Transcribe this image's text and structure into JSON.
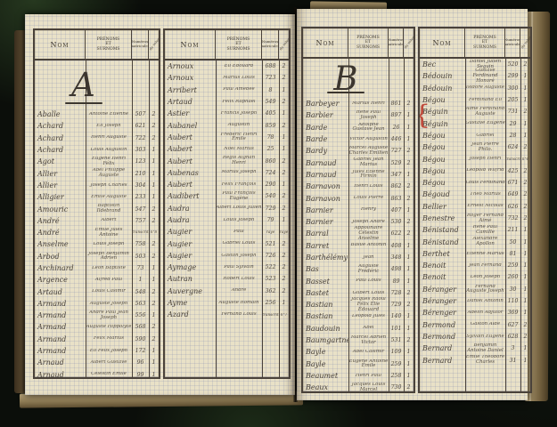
{
  "meta": {
    "document_type": "registre alphabétique manuscrit",
    "ink_color": "#474039",
    "red_accent": "#bf4b3c",
    "page_color": "#e9e1c7",
    "background_color": "#0b0e0a"
  },
  "header": {
    "nom": "Nom",
    "prenoms": "Prénoms\net\nSurnoms",
    "numeros": "Numéros\nmatricules",
    "volume": "N° du volume"
  },
  "pages": [
    {
      "side": "left",
      "letter": "A",
      "groups": [
        {
          "has_letter": true,
          "rows": [
            {
              "nom": "Aballe",
              "prenoms": "Antoine Étienne",
              "num": "507",
              "vol": "2"
            },
            {
              "nom": "Achard",
              "prenoms": "Éli Joseph",
              "num": "621",
              "vol": "2"
            },
            {
              "nom": "Achard",
              "prenoms": "Henri Auguste",
              "num": "722",
              "vol": "2"
            },
            {
              "nom": "Achard",
              "prenoms": "Louis Augustin",
              "num": "303",
              "vol": "1"
            },
            {
              "nom": "Agot",
              "prenoms": "Eugène Henri Félix",
              "num": "123",
              "vol": "1"
            },
            {
              "nom": "Allier",
              "prenoms": "Abel Philippe Auguste",
              "num": "210",
              "vol": "1"
            },
            {
              "nom": "Allier",
              "prenoms": "Joseph Charles",
              "num": "304",
              "vol": "1"
            },
            {
              "nom": "Alligier",
              "prenoms": "Émile Auguste",
              "num": "233",
              "vol": "1"
            },
            {
              "nom": "Amouric",
              "prenoms": "Baptistin Ildebrand",
              "num": "547",
              "vol": "2"
            },
            {
              "nom": "André",
              "prenoms": "Albert",
              "num": "757",
              "vol": "2"
            },
            {
              "nom": "André",
              "prenoms": "Émile Jules Antoine",
              "num": "transcrit",
              "vol": "n°8",
              "note": true
            },
            {
              "nom": "Anselme",
              "prenoms": "Louis Joseph",
              "num": "758",
              "vol": "2"
            },
            {
              "nom": "Arbod",
              "prenoms": "Joseph Benjamin Adrien",
              "num": "503",
              "vol": "2"
            },
            {
              "nom": "Archinard",
              "prenoms": "Léon Baptiste",
              "num": "73",
              "vol": "1"
            },
            {
              "nom": "Argence",
              "prenoms": "Alfred Paul",
              "num": "1",
              "vol": "1"
            },
            {
              "nom": "Artaud",
              "prenoms": "Louis Casimir",
              "num": "548",
              "vol": "2"
            },
            {
              "nom": "Armand",
              "prenoms": "Auguste Joseph",
              "num": "563",
              "vol": "2"
            },
            {
              "nom": "Armand",
              "prenoms": "André Paul Jean Joseph",
              "num": "556",
              "vol": "1"
            },
            {
              "nom": "Armand",
              "prenoms": "Auguste Hippolyte",
              "num": "568",
              "vol": "2"
            },
            {
              "nom": "Armand",
              "prenoms": "Félix Marius",
              "num": "590",
              "vol": "2"
            },
            {
              "nom": "Armand",
              "prenoms": "Éli Félix Joseph",
              "num": "172",
              "vol": "1"
            },
            {
              "nom": "Arnaud",
              "prenoms": "Albert Gustave",
              "num": "96",
              "vol": "1"
            },
            {
              "nom": "Arnaud",
              "prenoms": "Célestin Émile",
              "num": "99",
              "vol": "1"
            }
          ]
        },
        {
          "has_letter": false,
          "rows": [
            {
              "nom": "Arnoux",
              "prenoms": "Éli Édouard",
              "num": "688",
              "vol": "2"
            },
            {
              "nom": "Arnoux",
              "prenoms": "Marius Louis",
              "num": "723",
              "vol": "2"
            },
            {
              "nom": "Arribert",
              "prenoms": "Paul Amédée",
              "num": "8",
              "vol": "1"
            },
            {
              "nom": "Artaud",
              "prenoms": "Félix Raphaël",
              "num": "549",
              "vol": "2"
            },
            {
              "nom": "Astier",
              "prenoms": "Francis Joseph",
              "num": "405",
              "vol": "1"
            },
            {
              "nom": "Aubanel",
              "prenoms": "Augustin",
              "num": "859",
              "vol": "2"
            },
            {
              "nom": "Aubert",
              "prenoms": "Frédéric Henri Émile",
              "num": "78",
              "vol": "1"
            },
            {
              "nom": "Aubert",
              "prenoms": "Noël Marius",
              "num": "25",
              "vol": "1"
            },
            {
              "nom": "Aubert",
              "prenoms": "Régis Aignan Henri",
              "num": "860",
              "vol": "2"
            },
            {
              "nom": "Aubenas",
              "prenoms": "Marius Joseph",
              "num": "724",
              "vol": "2"
            },
            {
              "nom": "Aubert",
              "prenoms": "Félix François",
              "num": "290",
              "vol": "1"
            },
            {
              "nom": "Audibert",
              "prenoms": "Paul François Eugène",
              "num": "540",
              "vol": "2"
            },
            {
              "nom": "Audra",
              "prenoms": "Albert Louis Julien",
              "num": "729",
              "vol": "2"
            },
            {
              "nom": "Audra",
              "prenoms": "Louis Joseph",
              "num": "79",
              "vol": "1"
            },
            {
              "nom": "Augier",
              "prenoms": "Paul",
              "num": "rayé",
              "vol": "rayé",
              "note": true
            },
            {
              "nom": "Augier",
              "prenoms": "Gabriel Louis",
              "num": "521",
              "vol": "2"
            },
            {
              "nom": "Augier",
              "prenoms": "Gaston Joseph",
              "num": "726",
              "vol": "2"
            },
            {
              "nom": "Aymage",
              "prenoms": "Paul Sylvain",
              "num": "522",
              "vol": "2"
            },
            {
              "nom": "Autran",
              "prenoms": "Robert Louis",
              "num": "523",
              "vol": "2"
            },
            {
              "nom": "Auvergne",
              "prenoms": "André",
              "num": "362",
              "vol": "2"
            },
            {
              "nom": "Ayme",
              "prenoms": "Auguste Romain",
              "num": "256",
              "vol": "1"
            },
            {
              "nom": "Azard",
              "prenoms": "Fernand Louis",
              "num": "transcrit",
              "vol": "n°7",
              "note": true
            }
          ]
        }
      ]
    },
    {
      "side": "right",
      "letter": "B",
      "groups": [
        {
          "has_letter": true,
          "rows": [
            {
              "nom": "Barbeyer",
              "prenoms": "Marius Henri",
              "num": "861",
              "vol": "2"
            },
            {
              "nom": "Barbier",
              "prenoms": "René Paul Joseph",
              "num": "897",
              "vol": "1"
            },
            {
              "nom": "Barde",
              "prenoms": "Adolphe Gustave Jean",
              "num": "26",
              "vol": "1"
            },
            {
              "nom": "Barde",
              "prenoms": "Victor Augustin",
              "num": "446",
              "vol": "1"
            },
            {
              "nom": "Bardy",
              "prenoms": "Marcel Auguste Charles Émilien",
              "num": "727",
              "vol": "2"
            },
            {
              "nom": "Barnaud",
              "prenoms": "Gabriel Jean Marius",
              "num": "529",
              "vol": "2"
            },
            {
              "nom": "Barnaud",
              "prenoms": "Jules Étienne Firmin",
              "num": "347",
              "vol": "1"
            },
            {
              "nom": "Barnavon",
              "prenoms": "Henri Louis",
              "num": "862",
              "vol": "2"
            },
            {
              "nom": "Barnavon",
              "prenoms": "Louis Pierre",
              "num": "863",
              "vol": "2"
            },
            {
              "nom": "Barnier",
              "prenoms": "Henry",
              "num": "407",
              "vol": "1"
            },
            {
              "nom": "Barnier",
              "prenoms": "Joseph André",
              "num": "530",
              "vol": "2"
            },
            {
              "nom": "Barral",
              "prenoms": "Appolinaire Célestin Anselme",
              "num": "622",
              "vol": "2"
            },
            {
              "nom": "Barret",
              "prenoms": "Basile Antonin",
              "num": "408",
              "vol": "1"
            },
            {
              "nom": "Barthélémy",
              "prenoms": "Jean",
              "num": "348",
              "vol": "1"
            },
            {
              "nom": "Bas",
              "prenoms": "Auguste Frédéric",
              "num": "498",
              "vol": "1"
            },
            {
              "nom": "Basset",
              "prenoms": "Paul Louis",
              "num": "89",
              "vol": "1"
            },
            {
              "nom": "Bastet",
              "prenoms": "Gilbert Louis",
              "num": "728",
              "vol": "2"
            },
            {
              "nom": "Bastian",
              "prenoms": "Jacques Raoul Félix Élie Édouard",
              "num": "729",
              "vol": "2"
            },
            {
              "nom": "Bastian",
              "prenoms": "Léopold Jules",
              "num": "140",
              "vol": "1"
            },
            {
              "nom": "Baudouin",
              "prenoms": "Abel",
              "num": "101",
              "vol": "1"
            },
            {
              "nom": "Baumgartner",
              "prenoms": "Marcel Adrien Victor",
              "num": "531",
              "vol": "2"
            },
            {
              "nom": "Bayle",
              "prenoms": "Abel Casimir",
              "num": "109",
              "vol": "1"
            },
            {
              "nom": "Bayle",
              "prenoms": "Eugène Antoine Émile",
              "num": "259",
              "vol": "1"
            },
            {
              "nom": "Beaumet",
              "prenoms": "Henri Paul",
              "num": "258",
              "vol": "1"
            },
            {
              "nom": "Beaux",
              "prenoms": "Jacques Louis Marcel",
              "num": "730",
              "vol": "2"
            }
          ]
        },
        {
          "has_letter": false,
          "brace_rows": [
            4,
            5
          ],
          "rows": [
            {
              "nom": "Bec",
              "prenoms": "Daniel Julien Seguin",
              "num": "520",
              "vol": "2"
            },
            {
              "nom": "Bédouin",
              "prenoms": "Gustave Ferdinand Honoré",
              "num": "299",
              "vol": "1"
            },
            {
              "nom": "Bédouin",
              "prenoms": "Isidore Auguste",
              "num": "300",
              "vol": "1"
            },
            {
              "nom": "Bégou",
              "prenoms": "Ferdinand Éli",
              "num": "205",
              "vol": "1",
              "red": true
            },
            {
              "nom": "Béguin",
              "prenoms": "Aimé Ferdinand Auguste",
              "num": "731",
              "vol": "2"
            },
            {
              "nom": "Béguin",
              "prenoms": "Gustave Eugène",
              "num": "29",
              "vol": "1"
            },
            {
              "nom": "Bégou",
              "prenoms": "Gabriel",
              "num": "28",
              "vol": "1",
              "red": true
            },
            {
              "nom": "Bégou",
              "prenoms": "Jean Pierre Philo.",
              "num": "624",
              "vol": "2",
              "red": true
            },
            {
              "nom": "Bégou",
              "prenoms": "Joseph Henri",
              "num": "transcrit",
              "vol": "n°4",
              "note": true
            },
            {
              "nom": "Bégou",
              "prenoms": "Léopold Wilfrid",
              "num": "425",
              "vol": "2",
              "red": true
            },
            {
              "nom": "Bégou",
              "prenoms": "Louis Ferdinand",
              "num": "671",
              "vol": "2",
              "red": true
            },
            {
              "nom": "Bégoud",
              "prenoms": "Théo Marius",
              "num": "649",
              "vol": "2",
              "red": true
            },
            {
              "nom": "Bellier",
              "prenoms": "Ernest Nicolas",
              "num": "626",
              "vol": "2"
            },
            {
              "nom": "Benestre",
              "prenoms": "Roger Fernand Aimé",
              "num": "732",
              "vol": "2"
            },
            {
              "nom": "Bénistand",
              "prenoms": "René Paul Camille",
              "num": "211",
              "vol": "1"
            },
            {
              "nom": "Bénistand",
              "prenoms": "Alexandre Apollon",
              "num": "50",
              "vol": "1"
            },
            {
              "nom": "Berthet",
              "prenoms": "Étienne Marius",
              "num": "81",
              "vol": "1"
            },
            {
              "nom": "Benoit",
              "prenoms": "Jean Fernand",
              "num": "259",
              "vol": "1"
            },
            {
              "nom": "Benoit",
              "prenoms": "Léon Joseph",
              "num": "260",
              "vol": "1"
            },
            {
              "nom": "Béranger",
              "prenoms": "Fernand Auguste Joseph",
              "num": "30",
              "vol": "1"
            },
            {
              "nom": "Béranger",
              "prenoms": "Daniel Antonin",
              "num": "110",
              "vol": "1"
            },
            {
              "nom": "Bérenger",
              "prenoms": "Adelin Adjutor",
              "num": "369",
              "vol": "1"
            },
            {
              "nom": "Bermond",
              "prenoms": "Gaston Aldé",
              "num": "627",
              "vol": "2"
            },
            {
              "nom": "Bermond",
              "prenoms": "Sylvain Eugène",
              "num": "628",
              "vol": "2"
            },
            {
              "nom": "Bernard",
              "prenoms": "Benjamin Antoine Daniel",
              "num": "3",
              "vol": "1"
            },
            {
              "nom": "Bernard",
              "prenoms": "Émile Théodore Charles",
              "num": "31",
              "vol": "1"
            }
          ]
        }
      ]
    }
  ]
}
